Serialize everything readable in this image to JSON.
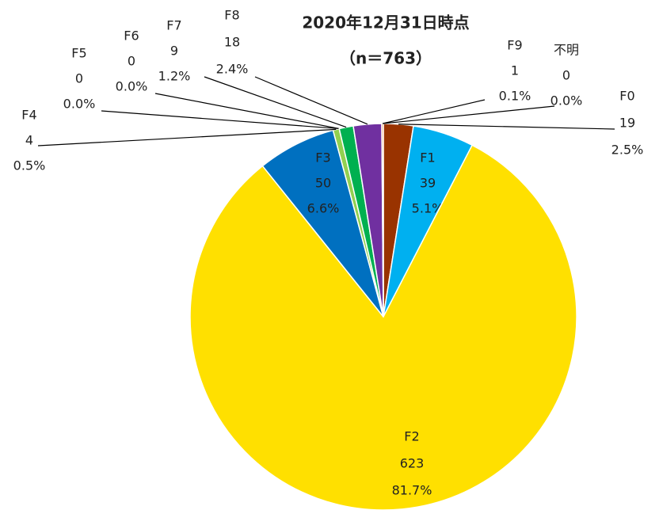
{
  "chart_data": {
    "type": "pie",
    "title": "2020年12月31日時点",
    "subtitle": "（n＝763）",
    "categories": [
      "F0",
      "F1",
      "F2",
      "F3",
      "F4",
      "F5",
      "F6",
      "F7",
      "F8",
      "F9",
      "不明"
    ],
    "values": [
      19,
      39,
      623,
      50,
      4,
      0,
      0,
      9,
      18,
      1,
      0
    ],
    "percent_labels": [
      "2.5%",
      "5.1%",
      "81.7%",
      "6.6%",
      "0.5%",
      "0.0%",
      "0.0%",
      "1.2%",
      "2.4%",
      "0.1%",
      "0.0%"
    ],
    "colors": [
      "#993300",
      "#00b0f0",
      "#ffe000",
      "#0070c0",
      "#92d050",
      "#a9d18e",
      "#548235",
      "#00b050",
      "#7030a0",
      "#ff6600",
      "#bfbfbf"
    ]
  }
}
